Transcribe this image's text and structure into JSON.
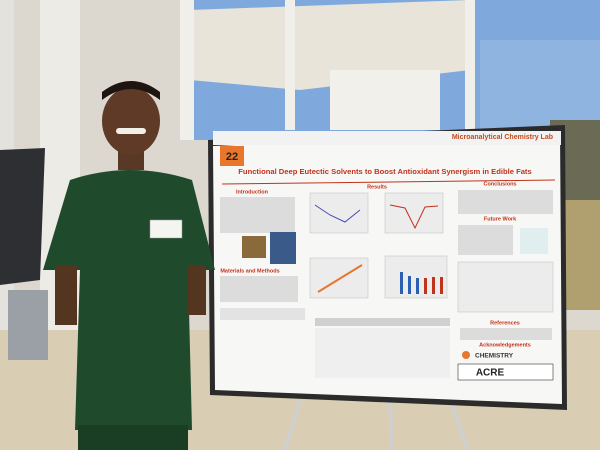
{
  "poster": {
    "number": "22",
    "lab": "Microanalytical Chemistry Lab",
    "title": "Functional Deep Eutectic Solvents to Boost Antioxidant Synergism in Edible Fats",
    "sections": {
      "introduction": "Introduction",
      "materials": "Materials and Methods",
      "results": "Results",
      "conclusions": "Conclusions",
      "future_work": "Future Work",
      "references": "References",
      "acknowledgements": "Acknowledgements"
    },
    "logos": {
      "chemistry": "CHEMISTRY",
      "acre": "ACRE"
    }
  }
}
